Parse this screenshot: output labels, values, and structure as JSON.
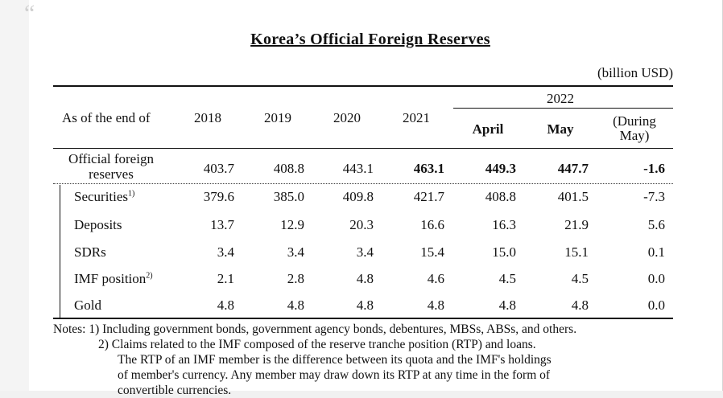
{
  "table": {
    "title": "Korea’s Official Foreign Reserves",
    "unit": "(billion USD)",
    "header": {
      "row_label": "As of the end of",
      "years": [
        "2018",
        "2019",
        "2020",
        "2021"
      ],
      "year_2022": "2022",
      "months": [
        "April",
        "May"
      ],
      "during_may_line1": "(During",
      "during_may_line2": "May)"
    },
    "total": {
      "label_line1": "Official foreign",
      "label_line2": "reserves",
      "values": [
        "403.7",
        "408.8",
        "443.1",
        "463.1",
        "449.3",
        "447.7",
        "-1.6"
      ]
    },
    "rows": [
      {
        "label": "Securities",
        "note": "1)",
        "values": [
          "379.6",
          "385.0",
          "409.8",
          "421.7",
          "408.8",
          "401.5",
          "-7.3"
        ]
      },
      {
        "label": "Deposits",
        "note": "",
        "values": [
          "13.7",
          "12.9",
          "20.3",
          "16.6",
          "16.3",
          "21.9",
          "5.6"
        ]
      },
      {
        "label": "SDRs",
        "note": "",
        "values": [
          "3.4",
          "3.4",
          "3.4",
          "15.4",
          "15.0",
          "15.1",
          "0.1"
        ]
      },
      {
        "label": "IMF position",
        "note": "2)",
        "values": [
          "2.1",
          "2.8",
          "4.8",
          "4.6",
          "4.5",
          "4.5",
          "0.0"
        ]
      },
      {
        "label": "Gold",
        "note": "",
        "values": [
          "4.8",
          "4.8",
          "4.8",
          "4.8",
          "4.8",
          "4.8",
          "0.0"
        ]
      }
    ]
  },
  "notes": {
    "prefix": "Notes:",
    "n1_marker": "1)",
    "n1_text": "Including government bonds, government agency bonds, debentures, MBSs, ABSs, and others.",
    "n2_marker": "2)",
    "n2_line1": "Claims related to the IMF composed of the reserve tranche position (RTP) and loans.",
    "n2_line2": "The RTP of an IMF member is the difference between its quota and the IMF's holdings",
    "n2_line3": "of member's currency. Any member may draw down its RTP at any time in the form of",
    "n2_line4": "convertible currencies."
  }
}
